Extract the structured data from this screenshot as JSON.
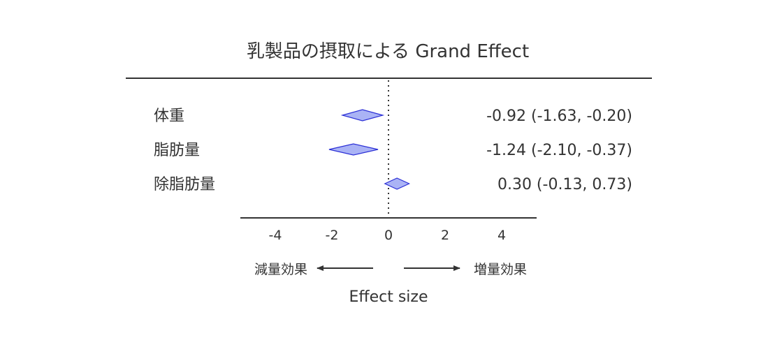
{
  "chart_data": {
    "type": "forest",
    "title": "乳製品の摂取による Grand Effect",
    "xlabel": "Effect size",
    "xlim": [
      -5,
      5
    ],
    "ticks": [
      -4,
      -2,
      0,
      2,
      4
    ],
    "tick_labels": [
      "-4",
      "-2",
      "0",
      "2",
      "4"
    ],
    "reference_line": 0,
    "rows": [
      {
        "label": "体重",
        "estimate": -0.92,
        "lower": -1.63,
        "upper": -0.2,
        "ci_text": "-0.92 (-1.63, -0.20)"
      },
      {
        "label": "脂肪量",
        "estimate": -1.24,
        "lower": -2.1,
        "upper": -0.37,
        "ci_text": "-1.24 (-2.10, -0.37)"
      },
      {
        "label": "除脂肪量",
        "estimate": 0.3,
        "lower": -0.13,
        "upper": 0.73,
        "ci_text": "0.30 (-0.13, 0.73)"
      }
    ],
    "direction_left": "減量効果",
    "direction_right": "増量効果",
    "colors": {
      "diamond_fill": "#aab3f5",
      "diamond_stroke": "#2b2fd6",
      "axis": "#333333",
      "text": "#333333"
    }
  }
}
